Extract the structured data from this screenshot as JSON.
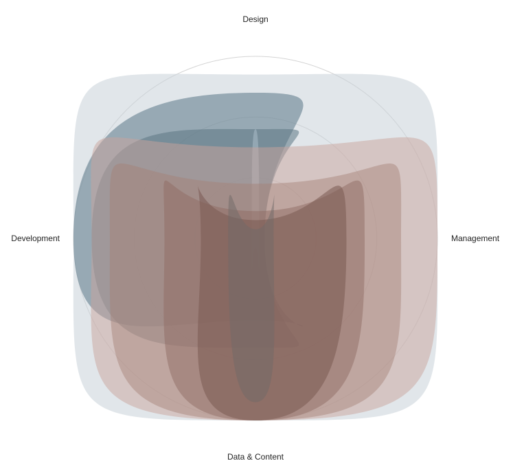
{
  "chart_data": {
    "type": "radar",
    "axes": [
      "Design",
      "Management",
      "Data & Content",
      "Development"
    ],
    "max": 1,
    "rings": 3,
    "grid": true,
    "legend": "none",
    "series": [
      {
        "values": [
          0.9,
          1.0,
          1.0,
          1.0
        ],
        "color": "#c9d1d9",
        "opacity": 0.55
      },
      {
        "values": [
          0.8,
          0.05,
          0.45,
          1.0
        ],
        "color": "#66808f",
        "opacity": 0.6
      },
      {
        "values": [
          0.6,
          0.05,
          0.6,
          0.9
        ],
        "color": "#5c7684",
        "opacity": 0.55
      },
      {
        "values": [
          0.6,
          0.02,
          0.05,
          0.02
        ],
        "color": "#a7b9c4",
        "opacity": 0.6
      },
      {
        "values": [
          0.5,
          1.0,
          1.0,
          0.9
        ],
        "color": "#c9a49c",
        "opacity": 0.5
      },
      {
        "values": [
          0.3,
          0.8,
          1.0,
          0.8
        ],
        "color": "#a58075",
        "opacity": 0.45
      },
      {
        "values": [
          0.15,
          0.6,
          1.0,
          0.5
        ],
        "color": "#8f6c64",
        "opacity": 0.5
      },
      {
        "values": [
          0.1,
          0.5,
          1.0,
          0.3
        ],
        "color": "#7a5a52",
        "opacity": 0.55
      },
      {
        "values": [
          0.05,
          0.1,
          0.9,
          0.15
        ],
        "color": "#6f6a68",
        "opacity": 0.5
      }
    ]
  }
}
